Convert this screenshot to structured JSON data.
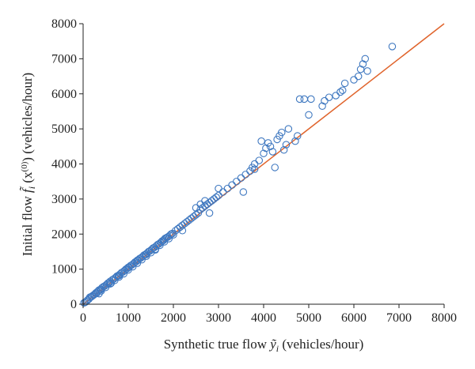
{
  "chart_data": {
    "type": "scatter",
    "xlabel": "Synthetic true flow ỹ_i (vehicles/hour)",
    "ylabel": "Initial flow f̃_i (x^(0)) (vehicles/hour)",
    "xlabel_parts": {
      "pre": "Synthetic true flow ",
      "sym": "ỹ",
      "sub": "i",
      "post": " (vehicles/hour)"
    },
    "ylabel_parts": {
      "pre": "Initial flow ",
      "sym": "f̃",
      "sub": "i",
      "mid": " (x",
      "sup": "(0)",
      "post": ") (vehicles/hour)"
    },
    "xlim": [
      0,
      8000
    ],
    "ylim": [
      0,
      8000
    ],
    "xticks": [
      "0",
      "1000",
      "2000",
      "3000",
      "4000",
      "5000",
      "6000",
      "7000",
      "8000"
    ],
    "yticks": [
      "0",
      "1000",
      "2000",
      "3000",
      "4000",
      "5000",
      "6000",
      "7000",
      "8000"
    ],
    "grid": false,
    "legend": "none",
    "colors": {
      "points": "#3f78c0",
      "line": "#e0642c",
      "axis": "#222222"
    },
    "reference_line": {
      "x": [
        0,
        8000
      ],
      "y": [
        0,
        8000
      ]
    },
    "series": [
      {
        "points": [
          [
            20,
            40
          ],
          [
            50,
            60
          ],
          [
            80,
            90
          ],
          [
            100,
            120
          ],
          [
            130,
            150
          ],
          [
            150,
            200
          ],
          [
            180,
            210
          ],
          [
            200,
            230
          ],
          [
            230,
            260
          ],
          [
            250,
            280
          ],
          [
            280,
            320
          ],
          [
            300,
            310
          ],
          [
            320,
            360
          ],
          [
            350,
            400
          ],
          [
            380,
            420
          ],
          [
            400,
            380
          ],
          [
            420,
            470
          ],
          [
            450,
            500
          ],
          [
            480,
            520
          ],
          [
            500,
            480
          ],
          [
            520,
            560
          ],
          [
            550,
            600
          ],
          [
            580,
            610
          ],
          [
            600,
            650
          ],
          [
            620,
            600
          ],
          [
            650,
            700
          ],
          [
            680,
            720
          ],
          [
            700,
            680
          ],
          [
            720,
            760
          ],
          [
            750,
            800
          ],
          [
            780,
            820
          ],
          [
            800,
            780
          ],
          [
            820,
            860
          ],
          [
            850,
            900
          ],
          [
            880,
            920
          ],
          [
            900,
            870
          ],
          [
            920,
            960
          ],
          [
            950,
            1000
          ],
          [
            980,
            1020
          ],
          [
            1000,
            980
          ],
          [
            1020,
            1060
          ],
          [
            1050,
            1100
          ],
          [
            1080,
            1120
          ],
          [
            1100,
            1070
          ],
          [
            1120,
            1160
          ],
          [
            1150,
            1200
          ],
          [
            1180,
            1220
          ],
          [
            1200,
            1170
          ],
          [
            1220,
            1260
          ],
          [
            1250,
            1300
          ],
          [
            1280,
            1320
          ],
          [
            1300,
            1270
          ],
          [
            1320,
            1360
          ],
          [
            1350,
            1400
          ],
          [
            1380,
            1420
          ],
          [
            1400,
            1370
          ],
          [
            1420,
            1460
          ],
          [
            1450,
            1500
          ],
          [
            1480,
            1520
          ],
          [
            1500,
            1470
          ],
          [
            1520,
            1560
          ],
          [
            1550,
            1600
          ],
          [
            1580,
            1620
          ],
          [
            1600,
            1570
          ],
          [
            1620,
            1660
          ],
          [
            1650,
            1700
          ],
          [
            1680,
            1720
          ],
          [
            1700,
            1680
          ],
          [
            1720,
            1760
          ],
          [
            1750,
            1800
          ],
          [
            1780,
            1820
          ],
          [
            1800,
            1780
          ],
          [
            1820,
            1880
          ],
          [
            1850,
            1900
          ],
          [
            1880,
            1920
          ],
          [
            1900,
            1870
          ],
          [
            1920,
            1960
          ],
          [
            1950,
            2000
          ],
          [
            1980,
            2020
          ],
          [
            2000,
            1980
          ],
          [
            2050,
            2100
          ],
          [
            2100,
            2150
          ],
          [
            2150,
            2200
          ],
          [
            2200,
            2250
          ],
          [
            2250,
            2300
          ],
          [
            2300,
            2350
          ],
          [
            2350,
            2400
          ],
          [
            2400,
            2450
          ],
          [
            2450,
            2500
          ],
          [
            2500,
            2550
          ],
          [
            2550,
            2600
          ],
          [
            2600,
            2700
          ],
          [
            2650,
            2750
          ],
          [
            2700,
            2800
          ],
          [
            2750,
            2850
          ],
          [
            2800,
            2900
          ],
          [
            2850,
            2950
          ],
          [
            2900,
            3000
          ],
          [
            2950,
            3050
          ],
          [
            3000,
            3100
          ],
          [
            2600,
            2850
          ],
          [
            2700,
            2950
          ],
          [
            2500,
            2750
          ],
          [
            3100,
            3200
          ],
          [
            3200,
            3300
          ],
          [
            3300,
            3400
          ],
          [
            3400,
            3500
          ],
          [
            3500,
            3600
          ],
          [
            3550,
            3200
          ],
          [
            3600,
            3700
          ],
          [
            3700,
            3800
          ],
          [
            3750,
            3900
          ],
          [
            3800,
            4000
          ],
          [
            3900,
            4100
          ],
          [
            3950,
            4650
          ],
          [
            4000,
            4300
          ],
          [
            4050,
            4450
          ],
          [
            4100,
            4600
          ],
          [
            4150,
            4500
          ],
          [
            4200,
            4350
          ],
          [
            4250,
            3900
          ],
          [
            4300,
            4700
          ],
          [
            4350,
            4800
          ],
          [
            4400,
            4900
          ],
          [
            4450,
            4400
          ],
          [
            4500,
            4550
          ],
          [
            4550,
            5000
          ],
          [
            4700,
            4650
          ],
          [
            4750,
            4800
          ],
          [
            4800,
            5850
          ],
          [
            4900,
            5850
          ],
          [
            5000,
            5400
          ],
          [
            5050,
            5850
          ],
          [
            5300,
            5650
          ],
          [
            5350,
            5800
          ],
          [
            5450,
            5900
          ],
          [
            5600,
            5950
          ],
          [
            5700,
            6050
          ],
          [
            5750,
            6100
          ],
          [
            5800,
            6300
          ],
          [
            6000,
            6400
          ],
          [
            6100,
            6500
          ],
          [
            6150,
            6700
          ],
          [
            6200,
            6850
          ],
          [
            6250,
            7000
          ],
          [
            6300,
            6650
          ],
          [
            6850,
            7350
          ],
          [
            3800,
            3850
          ],
          [
            3000,
            3300
          ],
          [
            2800,
            2600
          ],
          [
            2200,
            2100
          ],
          [
            1600,
            1550
          ],
          [
            1200,
            1250
          ],
          [
            800,
            820
          ],
          [
            400,
            420
          ],
          [
            350,
            300
          ],
          [
            600,
            580
          ],
          [
            1000,
            1050
          ],
          [
            1400,
            1420
          ],
          [
            1800,
            1850
          ]
        ]
      }
    ]
  }
}
